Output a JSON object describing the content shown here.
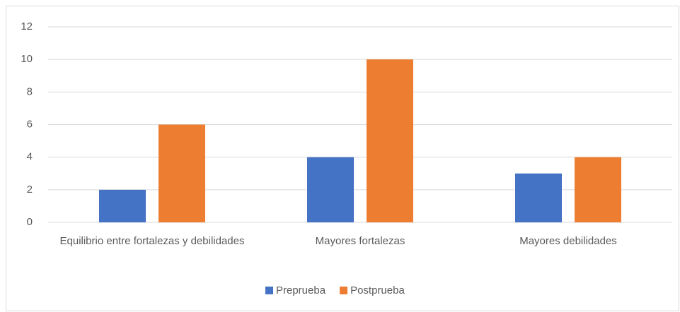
{
  "chart_data": {
    "type": "bar",
    "categories": [
      "Equilibrio entre fortalezas y debilidades",
      "Mayores fortalezas",
      "Mayores debilidades"
    ],
    "series": [
      {
        "name": "Preprueba",
        "color": "#4472c4",
        "values": [
          2,
          4,
          3
        ]
      },
      {
        "name": "Postprueba",
        "color": "#ed7d31",
        "values": [
          6,
          10,
          4
        ]
      }
    ],
    "ylim": [
      0,
      12
    ],
    "yticks": [
      0,
      2,
      4,
      6,
      8,
      10,
      12
    ],
    "grid": true,
    "legend": "bottom"
  }
}
